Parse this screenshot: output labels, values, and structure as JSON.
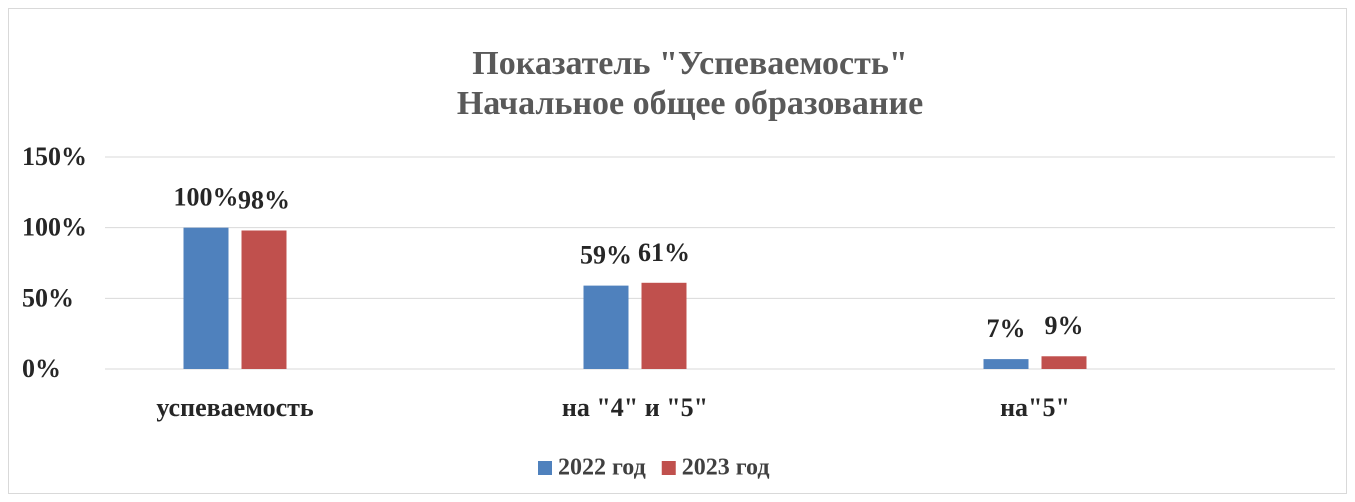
{
  "chart_data": {
    "type": "bar",
    "title": "Показатель \"Успеваемость\"",
    "subtitle": "Начальное общее образование",
    "categories": [
      "успеваемость",
      "на \"4\" и \"5\"",
      "на\"5\""
    ],
    "series": [
      {
        "name": "2022 год",
        "color": "#4f81bd",
        "values": [
          100,
          59,
          7
        ],
        "value_labels": [
          "100%",
          "59%",
          "7%"
        ]
      },
      {
        "name": "2023 год",
        "color": "#c0504d",
        "values": [
          98,
          61,
          9
        ],
        "value_labels": [
          "98%",
          "61%",
          "9%"
        ]
      }
    ],
    "ylim": [
      0,
      150
    ],
    "yticks": [
      {
        "value": 0,
        "label": "0%"
      },
      {
        "value": 50,
        "label": "50%"
      },
      {
        "value": 100,
        "label": "100%"
      },
      {
        "value": 150,
        "label": "150%"
      }
    ],
    "grid": true,
    "legend": "bottom"
  }
}
